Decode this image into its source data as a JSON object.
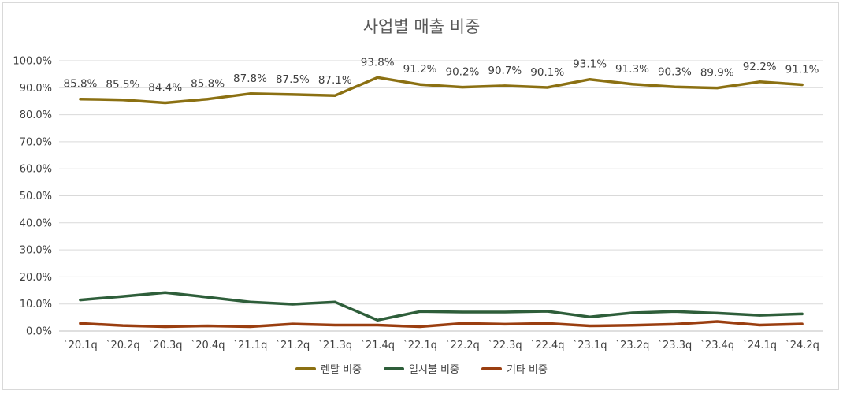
{
  "chart_data": {
    "type": "line",
    "title": "사업별 매출 비중",
    "categories": [
      "`20.1q",
      "`20.2q",
      "`20.3q",
      "`20.4q",
      "`21.1q",
      "`21.2q",
      "`21.3q",
      "`21.4q",
      "`22.1q",
      "`22.2q",
      "`22.3q",
      "`22.4q",
      "`23.1q",
      "`23.2q",
      "`23.3q",
      "`23.4q",
      "`24.1q",
      "`24.2q"
    ],
    "ylim": [
      0,
      100
    ],
    "yticks": [
      "0.0%",
      "10.0%",
      "20.0%",
      "30.0%",
      "40.0%",
      "50.0%",
      "60.0%",
      "70.0%",
      "80.0%",
      "90.0%",
      "100.0%"
    ],
    "grid": true,
    "legend_position": "bottom",
    "series": [
      {
        "name": "렌탈 비중",
        "color": "#8B7012",
        "values": [
          85.8,
          85.5,
          84.4,
          85.8,
          87.8,
          87.5,
          87.1,
          93.8,
          91.2,
          90.2,
          90.7,
          90.1,
          93.1,
          91.3,
          90.3,
          89.9,
          92.2,
          91.1
        ],
        "data_labels": [
          "85.8%",
          "85.5%",
          "84.4%",
          "85.8%",
          "87.8%",
          "87.5%",
          "87.1%",
          "93.8%",
          "91.2%",
          "90.2%",
          "90.7%",
          "90.1%",
          "93.1%",
          "91.3%",
          "90.3%",
          "89.9%",
          "92.2%",
          "91.1%"
        ]
      },
      {
        "name": "일시불 비중",
        "color": "#2E5E3A",
        "values": [
          11.5,
          12.8,
          14.2,
          12.5,
          10.7,
          9.9,
          10.7,
          4.0,
          7.2,
          7.0,
          7.0,
          7.3,
          5.2,
          6.7,
          7.2,
          6.6,
          5.8,
          6.3
        ]
      },
      {
        "name": "기타 비중",
        "color": "#9A3E10",
        "values": [
          2.8,
          2.0,
          1.6,
          1.9,
          1.6,
          2.6,
          2.2,
          2.2,
          1.6,
          2.8,
          2.5,
          2.8,
          1.9,
          2.1,
          2.5,
          3.5,
          2.2,
          2.6
        ]
      }
    ]
  }
}
